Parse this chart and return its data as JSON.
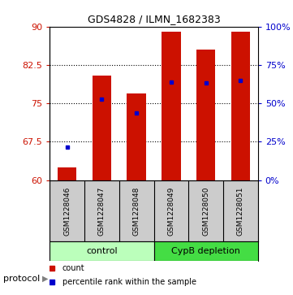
{
  "title": "GDS4828 / ILMN_1682383",
  "samples": [
    "GSM1228046",
    "GSM1228047",
    "GSM1228048",
    "GSM1228049",
    "GSM1228050",
    "GSM1228051"
  ],
  "bar_bottoms": [
    60,
    60,
    60,
    60,
    60,
    60
  ],
  "bar_tops": [
    62.5,
    80.5,
    77.0,
    89.0,
    85.5,
    89.0
  ],
  "percentile_values": [
    66.5,
    75.8,
    73.2,
    79.2,
    79.0,
    79.5
  ],
  "ylim": [
    60,
    90
  ],
  "yticks_left": [
    60,
    67.5,
    75,
    82.5,
    90
  ],
  "yticks_right_vals": [
    0,
    25,
    50,
    75,
    100
  ],
  "yticks_right_pos": [
    60,
    67.5,
    75,
    82.5,
    90
  ],
  "bar_color": "#cc1100",
  "percentile_color": "#0000cc",
  "control_color": "#bbffbb",
  "depletion_color": "#44dd44",
  "group_label_control": "control",
  "group_label_depletion": "CypB depletion",
  "protocol_label": "protocol",
  "legend_count": "count",
  "legend_percentile": "percentile rank within the sample",
  "background_color": "#ffffff",
  "sample_bg_color": "#cccccc"
}
